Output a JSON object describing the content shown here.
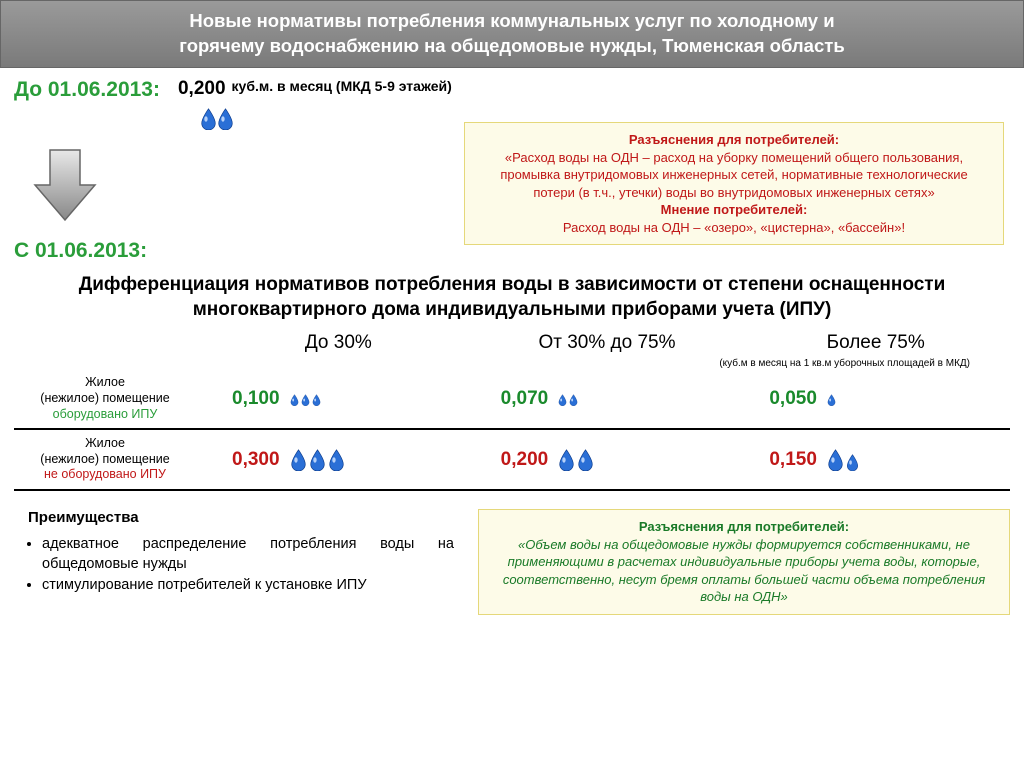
{
  "header": {
    "line1": "Новые нормативы потребления коммунальных услуг по холодному и",
    "line2": "горячему водоснабжению на общедомовые нужды, Тюменская область"
  },
  "before": {
    "label": "До 01.06.2013:",
    "value": "0,200",
    "unit": "куб.м. в месяц (МКД 5-9 этажей)",
    "drop_count": 2
  },
  "note1": {
    "title1": "Разъяснения для потребителей:",
    "body1": "«Расход воды на ОДН – расход на уборку помещений общего пользования, промывка внутридомовых инженерных сетей, нормативные технологические потери (в т.ч., утечки) воды во внутридомовых инженерных сетях»",
    "title2": "Мнение потребителей:",
    "body2": "Расход воды на ОДН – «озеро», «цистерна», «бассейн»!"
  },
  "after": {
    "label": "С 01.06.2013:",
    "desc": "Дифференциация нормативов потребления воды в зависимости от степени оснащенности многоквартирного дома индивидуальными приборами учета (ИПУ)"
  },
  "columns": {
    "c1": "До 30%",
    "c2": "От 30% до 75%",
    "c3": "Более 75%",
    "unit": "(куб.м в месяц на 1 кв.м уборочных площадей в МКД)"
  },
  "rows": [
    {
      "label_line1": "Жилое",
      "label_line2": "(нежилое) помещение",
      "label_status": "оборудовано ИПУ",
      "status_class": "green",
      "color_class": "val-green",
      "cells": [
        {
          "value": "0,100",
          "drops": [
            "sm",
            "sm",
            "sm"
          ]
        },
        {
          "value": "0,070",
          "drops": [
            "sm",
            "sm"
          ]
        },
        {
          "value": "0,050",
          "drops": [
            "sm"
          ]
        }
      ]
    },
    {
      "label_line1": "Жилое",
      "label_line2": "(нежилое) помещение",
      "label_status": "не оборудовано ИПУ",
      "status_class": "red",
      "color_class": "val-red",
      "cells": [
        {
          "value": "0,300",
          "drops": [
            "lg",
            "lg",
            "lg"
          ]
        },
        {
          "value": "0,200",
          "drops": [
            "lg",
            "lg"
          ]
        },
        {
          "value": "0,150",
          "drops": [
            "lg",
            "md"
          ]
        }
      ]
    }
  ],
  "advantages": {
    "title": "Преимущества",
    "items": [
      "адекватное распределение потребления воды на общедомовые нужды",
      "стимулирование потребителей к установке ИПУ"
    ]
  },
  "note2": {
    "title": "Разъяснения для потребителей:",
    "body": "«Объем воды на общедомовые нужды формируется собственниками, не применяющими в расчетах индивидуальные приборы учета воды, которые, соответственно, несут бремя оплаты большей части объема потребления воды на ОДН»"
  },
  "colors": {
    "header_bg_top": "#9a9a9a",
    "header_bg_bottom": "#7a7a7a",
    "green": "#2a9d3a",
    "red": "#c01818",
    "note_bg": "#fdfbe8",
    "note_border": "#e5d87a",
    "drop_fill": "#2a6fd6",
    "drop_highlight": "#cfe3ff"
  }
}
